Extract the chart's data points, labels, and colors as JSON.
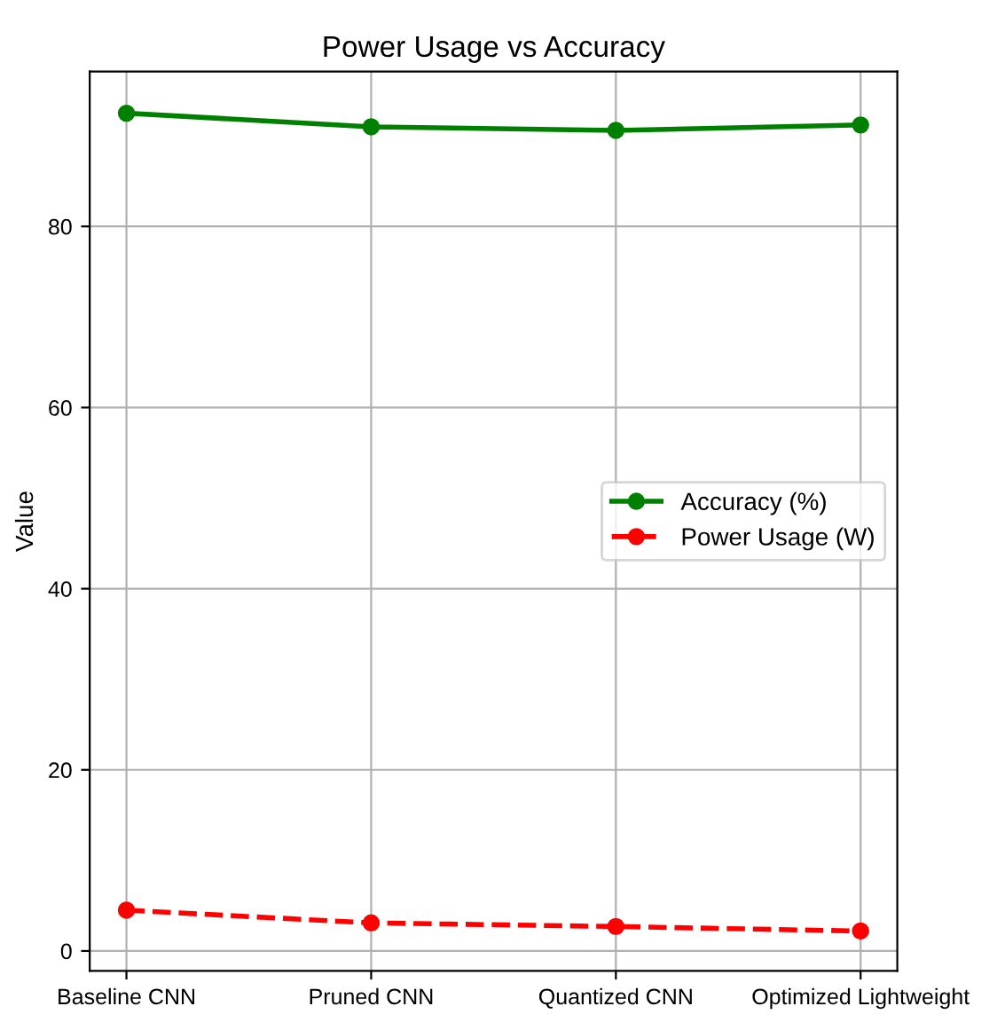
{
  "chart_data": {
    "type": "line",
    "title": "Power Usage vs Accuracy",
    "ylabel": "Value",
    "categories": [
      "Baseline CNN",
      "Pruned CNN",
      "Quantized CNN",
      "Optimized Lightweight"
    ],
    "series": [
      {
        "name": "Accuracy (%)",
        "color": "#008000",
        "values": [
          92.5,
          91.0,
          90.6,
          91.2
        ],
        "line_style": "solid"
      },
      {
        "name": "Power Usage (W)",
        "color": "#ff0000",
        "values": [
          4.5,
          3.1,
          2.7,
          2.2
        ],
        "line_style": "dashed"
      }
    ],
    "ylim": [
      -2.2,
      97.1
    ],
    "yticks": [
      0,
      20,
      40,
      60,
      80
    ],
    "grid": true,
    "legend": "center right",
    "marker": "circle"
  }
}
